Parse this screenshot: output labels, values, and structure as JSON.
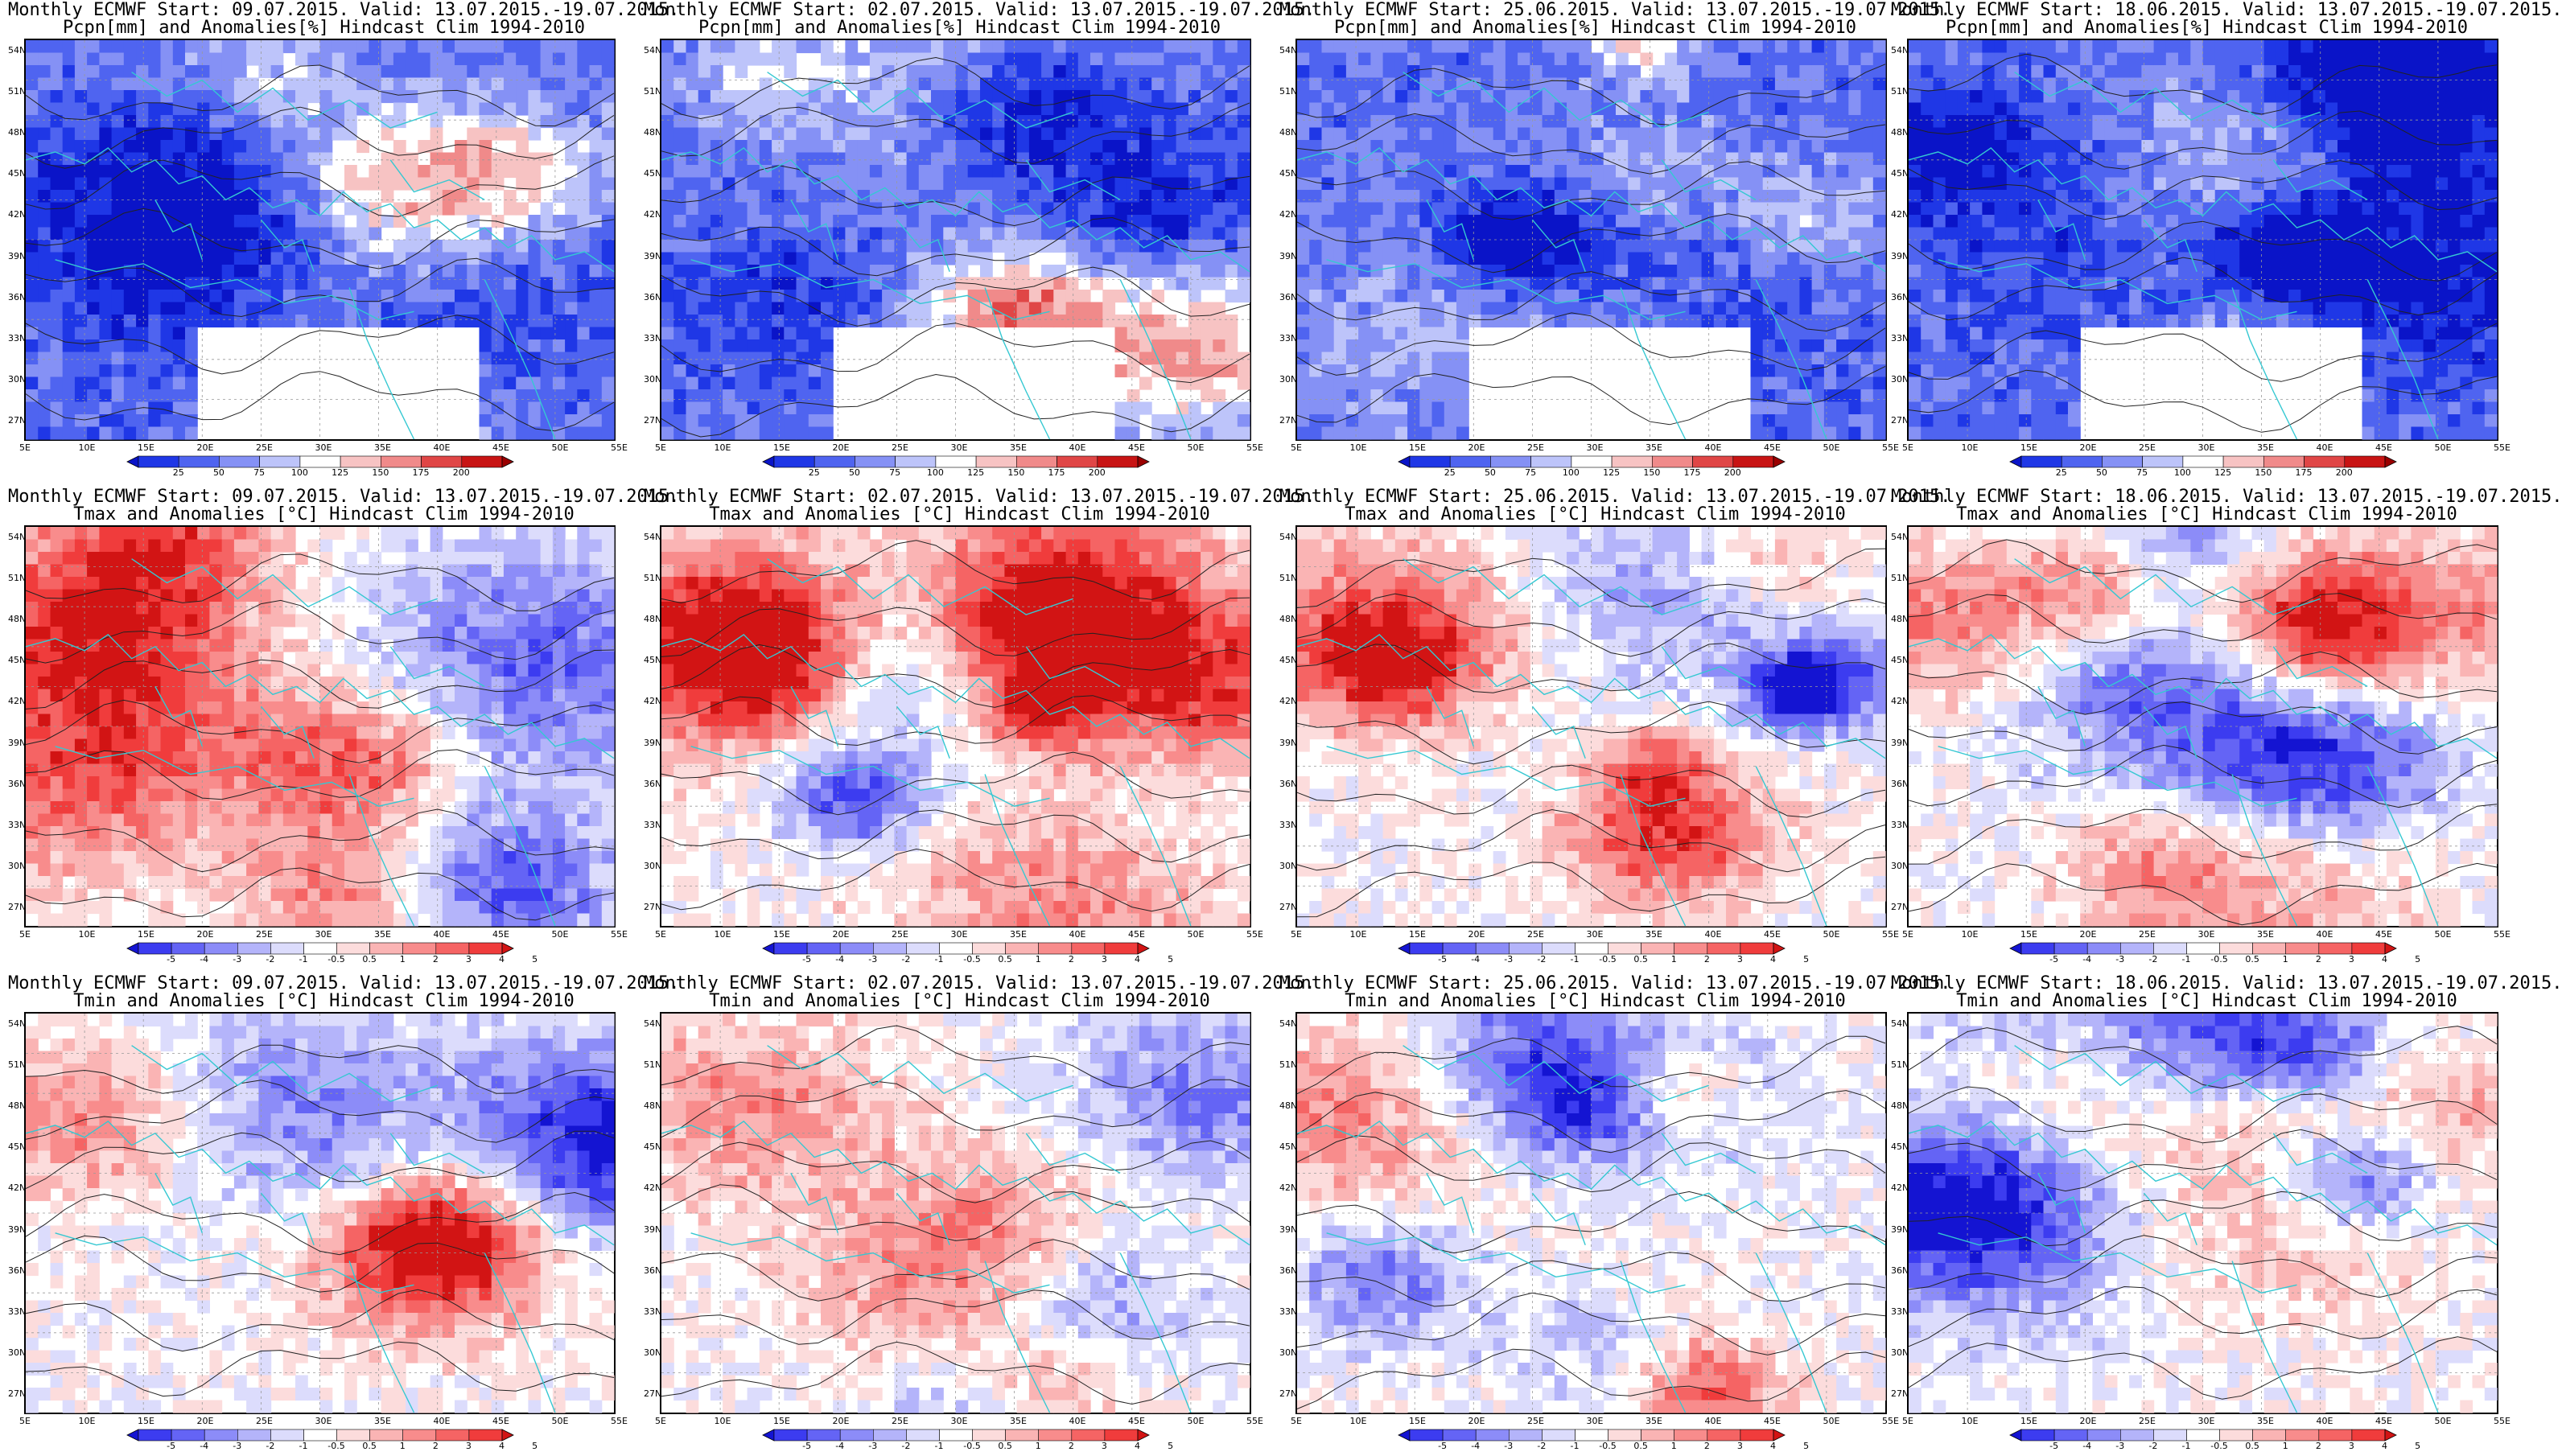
{
  "colors": {
    "precip": [
      "#0a14c8",
      "#1f37e6",
      "#4f64f0",
      "#8591f5",
      "#bdc4fa",
      "#ffffff",
      "#f7c3c3",
      "#f08a8a",
      "#e04646",
      "#c81414",
      "#9a0000"
    ],
    "temp": [
      "#1414d2",
      "#3c3cf0",
      "#6464f5",
      "#8c8cf8",
      "#b4b4fa",
      "#dcdcfc",
      "#ffffff",
      "#fcdcdc",
      "#fab4b4",
      "#f88c8c",
      "#f56464",
      "#f03c3c",
      "#d21414"
    ],
    "coast": "#35c8d2",
    "contour": "#222222"
  },
  "rows": [
    {
      "var_line": "Pcpn[mm] and Anomalies[%] Hindcast Clim 1994-2010",
      "kind": "precip",
      "colorbar_labels": [
        "25",
        "50",
        "75",
        "100",
        "125",
        "150",
        "175",
        "200"
      ]
    },
    {
      "var_line": "Tmax and Anomalies [°C] Hindcast Clim 1994-2010",
      "kind": "temp",
      "colorbar_labels": [
        "-5",
        "-4",
        "-3",
        "-2",
        "-1",
        "-0.5",
        "0.5",
        "1",
        "2",
        "3",
        "4",
        "5"
      ]
    },
    {
      "var_line": "Tmin and Anomalies [°C] Hindcast Clim 1994-2010",
      "kind": "temp",
      "colorbar_labels": [
        "-5",
        "-4",
        "-3",
        "-2",
        "-1",
        "-0.5",
        "0.5",
        "1",
        "2",
        "3",
        "4",
        "5"
      ]
    }
  ],
  "columns": [
    {
      "header": "Monthly ECMWF Start: 09.07.2015. Valid: 13.07.2015.-19.07.2015."
    },
    {
      "header": "Monthly ECMWF Start: 02.07.2015. Valid: 13.07.2015.-19.07.2015."
    },
    {
      "header": "Monthly ECMWF Start: 25.06.2015. Valid: 13.07.2015.-19.07.2015."
    },
    {
      "header": "Monthly ECMWF Start: 18.06.2015. Valid: 13.07.2015.-19.07.2015."
    }
  ],
  "lat_labels": [
    "54N",
    "51N",
    "48N",
    "45N",
    "42N",
    "39N",
    "36N",
    "33N",
    "30N",
    "27N"
  ],
  "lon_labels": [
    "5E",
    "10E",
    "15E",
    "20E",
    "25E",
    "30E",
    "35E",
    "40E",
    "45E",
    "50E",
    "55E"
  ]
}
